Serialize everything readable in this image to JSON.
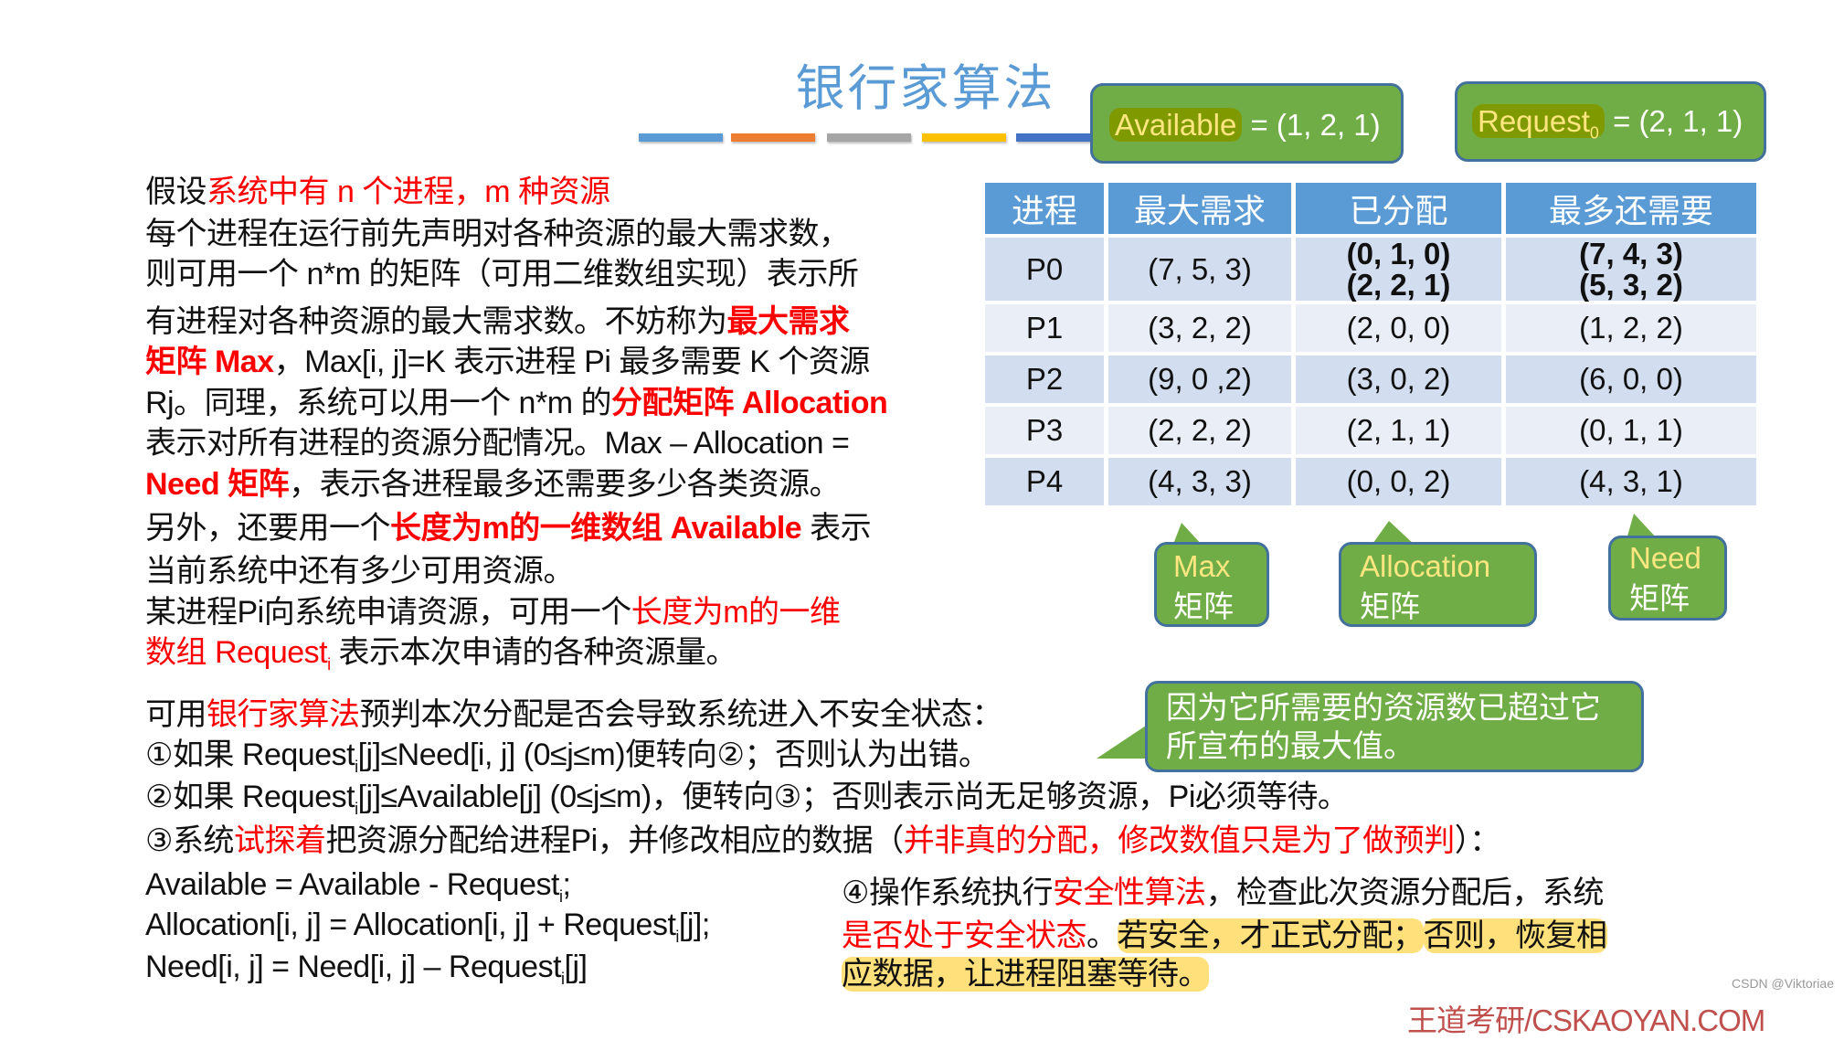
{
  "title": "银行家算法",
  "colors": {
    "title": "#5b9bd5",
    "accent_red": "#ff0000",
    "box_green": "#70ad47",
    "box_border": "#41719c",
    "header_blue": "#5b9bd5",
    "bars": [
      "#5b9bd5",
      "#ed7d31",
      "#a5a5a5",
      "#ffc000",
      "#4472c4"
    ]
  },
  "available_box": {
    "label": "Available",
    "value": " = (1, 2, 1)"
  },
  "request_box": {
    "label": "Request",
    "sub": "0",
    "value": " = (2, 1, 1)"
  },
  "table": {
    "headers": [
      "进程",
      "最大需求",
      "已分配",
      "最多还需要"
    ],
    "rows": [
      {
        "proc": "P0",
        "max": "(7, 5, 3)",
        "alloc": [
          "(0, 1, 0)",
          "(2, 2, 1)"
        ],
        "need": [
          "(7, 4, 3)",
          "(5, 3, 2)"
        ]
      },
      {
        "proc": "P1",
        "max": "(3, 2, 2)",
        "alloc": [
          "(2, 0, 0)"
        ],
        "need": [
          "(1, 2, 2)"
        ]
      },
      {
        "proc": "P2",
        "max": "(9, 0 ,2)",
        "alloc": [
          "(3, 0, 2)"
        ],
        "need": [
          "(6, 0, 0)"
        ]
      },
      {
        "proc": "P3",
        "max": "(2, 2, 2)",
        "alloc": [
          "(2, 1, 1)"
        ],
        "need": [
          "(0, 1, 1)"
        ]
      },
      {
        "proc": "P4",
        "max": "(4, 3, 3)",
        "alloc": [
          "(0, 0, 2)"
        ],
        "need": [
          "(4, 3, 1)"
        ]
      }
    ]
  },
  "labels": {
    "max": {
      "top": "Max",
      "bottom": "矩阵"
    },
    "allocation": {
      "top": "Allocation",
      "bottom": "矩阵"
    },
    "need": {
      "top": "Need",
      "bottom": "矩阵"
    }
  },
  "callout": "因为它所需要的资源数已超过它所宣布的最大值。",
  "paragraph": [
    [
      {
        "t": "假设",
        "s": "n"
      },
      {
        "t": "系统中有 n 个进程，m 种资源",
        "s": "r"
      }
    ],
    [
      {
        "t": "每个进程在运行前先声明对各种资源的最大需求数，",
        "s": "n"
      }
    ],
    [
      {
        "t": "则可用一个 n*m 的矩阵（可用二维数组实现）表示所",
        "s": "n"
      }
    ],
    [
      {
        "t": "有进程对各种资源的最大需求数。不妨称为",
        "s": "n"
      },
      {
        "t": "最大需求",
        "s": "rb"
      }
    ],
    [
      {
        "t": "矩阵 Max",
        "s": "rb"
      },
      {
        "t": "，Max[i, j]=K 表示进程 Pi 最多需要 K 个资源",
        "s": "n"
      }
    ],
    [
      {
        "t": "Rj。同理，系统可以用一个 n*m 的",
        "s": "n"
      },
      {
        "t": "分配矩阵 Allocation",
        "s": "rb"
      }
    ],
    [
      {
        "t": "表示对所有进程的资源分配情况。Max – Allocation =",
        "s": "n"
      }
    ],
    [
      {
        "t": "Need 矩阵",
        "s": "rb"
      },
      {
        "t": "，表示各进程最多还需要多少各类资源。",
        "s": "n"
      }
    ],
    [
      {
        "t": "另外，还要用一个",
        "s": "n"
      },
      {
        "t": "长度为m的一维数组 Available",
        "s": "rb"
      },
      {
        "t": " 表示",
        "s": "n"
      }
    ],
    [
      {
        "t": "当前系统中还有多少可用资源。",
        "s": "n"
      }
    ],
    [
      {
        "t": "某进程Pi向系统申请资源，可用一个",
        "s": "n"
      },
      {
        "t": "长度为m的一维",
        "s": "r"
      }
    ],
    [
      {
        "t": "数组 Request",
        "s": "r"
      },
      {
        "t": "i",
        "s": "rsub"
      },
      {
        "t": " 表示本次申请的各种资源量。",
        "s": "n"
      }
    ]
  ],
  "steps": [
    [
      {
        "t": "可用",
        "s": "n"
      },
      {
        "t": "银行家算法",
        "s": "r"
      },
      {
        "t": "预判本次分配是否会导致系统进入不安全状态：",
        "s": "n"
      }
    ],
    [
      {
        "t": "①如果 Request",
        "s": "n"
      },
      {
        "t": "i",
        "s": "sub"
      },
      {
        "t": "[j]≤Need[i, j] (0≤j≤m)便转向②；否则认为出错。",
        "s": "n"
      }
    ],
    [
      {
        "t": "②如果 Request",
        "s": "n"
      },
      {
        "t": "i",
        "s": "sub"
      },
      {
        "t": "[j]≤Available[j] (0≤j≤m)，便转向③；否则表示尚无足够资源，Pi必须等待。",
        "s": "n"
      }
    ],
    [
      {
        "t": "③系统",
        "s": "n"
      },
      {
        "t": "试探着",
        "s": "r"
      },
      {
        "t": "把资源分配给进程Pi，并修改相应的数据（",
        "s": "n"
      },
      {
        "t": "并非真的分配，修改数值只是为了做预判",
        "s": "r"
      },
      {
        "t": "）：",
        "s": "n"
      }
    ]
  ],
  "formulas": [
    [
      {
        "t": "Available = Available - Request",
        "s": "n"
      },
      {
        "t": "i",
        "s": "sub"
      },
      {
        "t": ";",
        "s": "n"
      }
    ],
    [
      {
        "t": "Allocation[i, j] = Allocation[i, j] + Request",
        "s": "n"
      },
      {
        "t": "i",
        "s": "sub"
      },
      {
        "t": "[j];",
        "s": "n"
      }
    ],
    [
      {
        "t": "Need[i, j] = Need[i, j] – Request",
        "s": "n"
      },
      {
        "t": "i",
        "s": "sub"
      },
      {
        "t": "[j]",
        "s": "n"
      }
    ]
  ],
  "step4": [
    [
      {
        "t": "④操作系统执行",
        "s": "n"
      },
      {
        "t": "安全性算法",
        "s": "r"
      },
      {
        "t": "，检查此次资源分配后，系统",
        "s": "n"
      }
    ],
    [
      {
        "t": "是否处于安全状态",
        "s": "r"
      },
      {
        "t": "。",
        "s": "n"
      },
      {
        "t": "若安全，才正式分配；",
        "s": "hl"
      },
      {
        "t": "否则，恢复相",
        "s": "hl"
      }
    ],
    [
      {
        "t": "应数据，让进程阻塞等待。",
        "s": "hl"
      }
    ]
  ],
  "footer": "王道考研/CSKAOYAN.COM",
  "watermark": "CSDN @Viktoriae"
}
